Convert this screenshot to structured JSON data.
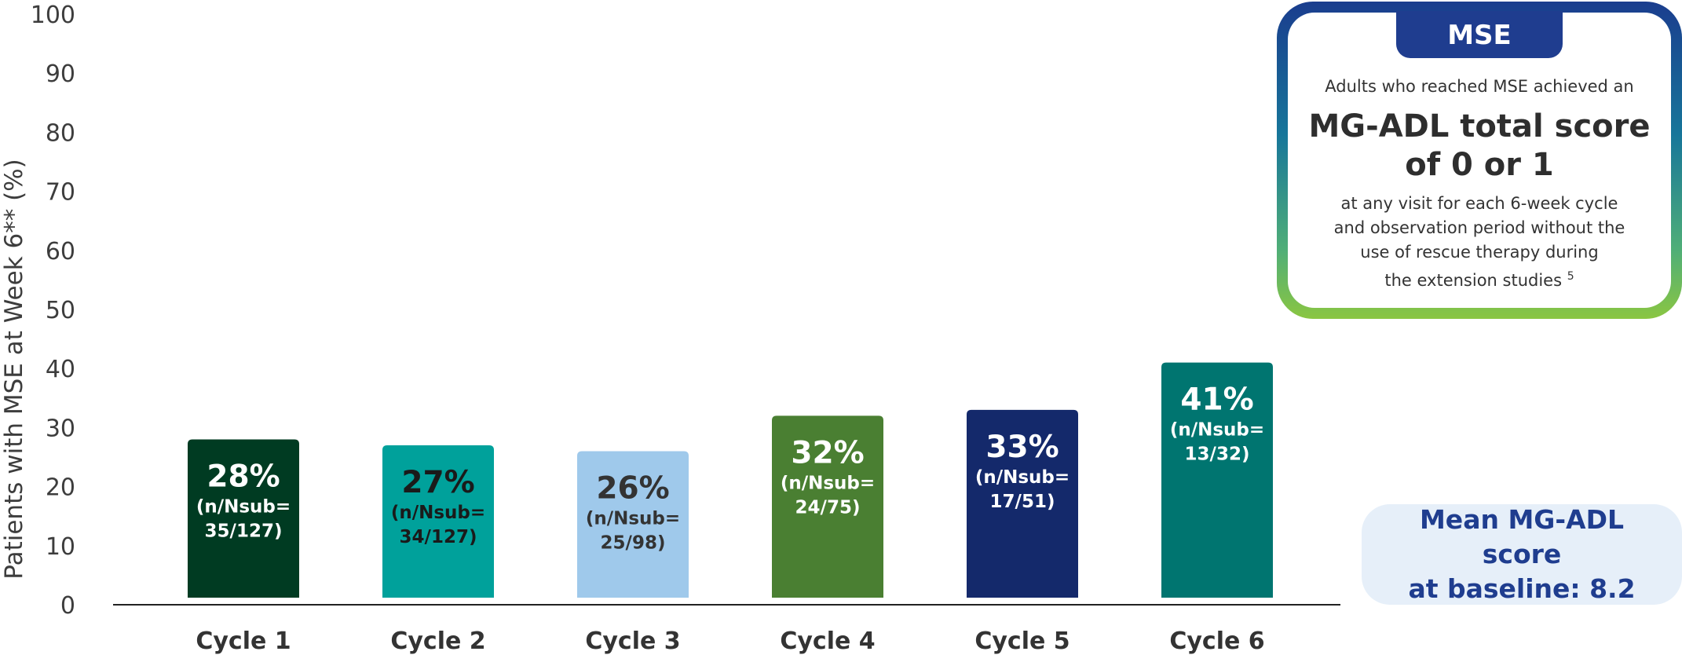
{
  "chart_data": {
    "type": "bar",
    "ylabel": "Patients with MSE at Week 6** (%)",
    "ylim": [
      0,
      100
    ],
    "yticks": [
      0,
      10,
      20,
      30,
      40,
      50,
      60,
      70,
      80,
      90,
      100
    ],
    "grid": false,
    "categories": [
      "Cycle 1",
      "Cycle 2",
      "Cycle 3",
      "Cycle 4",
      "Cycle 5",
      "Cycle 6"
    ],
    "values": [
      28,
      27,
      26,
      32,
      33,
      41
    ],
    "value_labels": [
      "28%",
      "27%",
      "26%",
      "32%",
      "33%",
      "41%"
    ],
    "nsub_heading": "(n/Nsub=",
    "nsub_values": [
      "35/127)",
      "34/127)",
      "25/98)",
      "24/75)",
      "17/51)",
      "13/32)"
    ],
    "bar_colors": [
      "#003b22",
      "#00a19b",
      "#9fc9eb",
      "#4a7f32",
      "#14296b",
      "#007570"
    ],
    "label_colors": [
      "#ffffff",
      "#1a1a1a",
      "#333333",
      "#ffffff",
      "#ffffff",
      "#ffffff"
    ]
  },
  "mse_panel": {
    "tab_label": "MSE",
    "intro": "Adults who reached MSE achieved an",
    "headline_line1": "MG-ADL total score",
    "headline_line2": "of 0 or 1",
    "detail_line1": "at any visit for each 6-week cycle",
    "detail_line2": "and observation period without the",
    "detail_line3": "use of rescue therapy during",
    "detail_line4": "the extension studies",
    "detail_ref": "5"
  },
  "baseline_panel": {
    "line1": "Mean MG-ADL score",
    "line2": "at baseline: 8.2"
  }
}
